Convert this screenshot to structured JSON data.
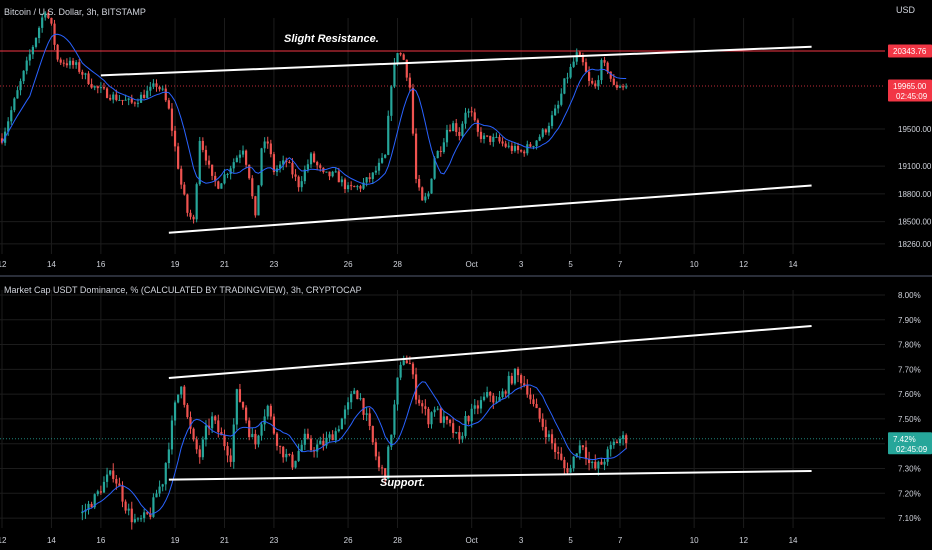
{
  "colors": {
    "background": "#000000",
    "up": "#26a69a",
    "down": "#ef5350",
    "ma": "#2962ff",
    "trendline": "#ffffff",
    "hline": "#f23645",
    "axis_text": "#d1d4dc",
    "grid": "#1c1c1c",
    "separator": "#2a2e39"
  },
  "x_axis": {
    "ticks": [
      {
        "label": "12",
        "idx": 0
      },
      {
        "label": "14",
        "idx": 16
      },
      {
        "label": "16",
        "idx": 32
      },
      {
        "label": "19",
        "idx": 56
      },
      {
        "label": "21",
        "idx": 72
      },
      {
        "label": "23",
        "idx": 88
      },
      {
        "label": "26",
        "idx": 112
      },
      {
        "label": "28",
        "idx": 128
      },
      {
        "label": "Oct",
        "idx": 152
      },
      {
        "label": "3",
        "idx": 168
      },
      {
        "label": "5",
        "idx": 184
      },
      {
        "label": "7",
        "idx": 200
      },
      {
        "label": "10",
        "idx": 224
      },
      {
        "label": "12",
        "idx": 240
      },
      {
        "label": "14",
        "idx": 256
      }
    ]
  },
  "chart_data": [
    {
      "type": "candlestick",
      "title": "Bitcoin / U.S. Dollar, 3h, BITSTAMP",
      "currency_label": "USD",
      "ylim": [
        18150,
        20700
      ],
      "y_ticks": [
        "18260.00",
        "18500.00",
        "18800.00",
        "19100.00",
        "19500.00"
      ],
      "y_tick_values": [
        18260,
        18500,
        18800,
        19100,
        19500
      ],
      "price_labels": [
        {
          "value": 20343.76,
          "text": "20343.76",
          "style": "hline"
        },
        {
          "value": 19965.0,
          "text": "19965.00",
          "sub": "02:45:09",
          "style": "last"
        }
      ],
      "horizontal_line": 20343.76,
      "last_price_line": 19965,
      "trendlines": [
        {
          "from": [
            32,
            20080
          ],
          "to": [
            262,
            20390
          ],
          "label": "Slight Resistance."
        },
        {
          "from": [
            54,
            18380
          ],
          "to": [
            262,
            18890
          ],
          "label": ""
        }
      ],
      "key_points": [
        [
          0,
          19400
        ],
        [
          8,
          20200
        ],
        [
          14,
          20800
        ],
        [
          16,
          20600
        ],
        [
          18,
          20250
        ],
        [
          24,
          20180
        ],
        [
          30,
          19950
        ],
        [
          36,
          19850
        ],
        [
          42,
          19780
        ],
        [
          48,
          19920
        ],
        [
          50,
          19980
        ],
        [
          52,
          19900
        ],
        [
          54,
          19700
        ],
        [
          56,
          19300
        ],
        [
          58,
          18900
        ],
        [
          60,
          18600
        ],
        [
          62,
          18500
        ],
        [
          64,
          19400
        ],
        [
          66,
          19200
        ],
        [
          68,
          18950
        ],
        [
          70,
          18900
        ],
        [
          74,
          19100
        ],
        [
          78,
          19300
        ],
        [
          80,
          19000
        ],
        [
          82,
          18520
        ],
        [
          84,
          19300
        ],
        [
          86,
          19350
        ],
        [
          88,
          19050
        ],
        [
          92,
          19150
        ],
        [
          96,
          18900
        ],
        [
          100,
          19200
        ],
        [
          104,
          19000
        ],
        [
          108,
          19000
        ],
        [
          112,
          18850
        ],
        [
          116,
          18880
        ],
        [
          120,
          19000
        ],
        [
          124,
          19200
        ],
        [
          126,
          20000
        ],
        [
          128,
          20350
        ],
        [
          130,
          20250
        ],
        [
          132,
          19950
        ],
        [
          134,
          18950
        ],
        [
          136,
          18700
        ],
        [
          138,
          18800
        ],
        [
          140,
          19200
        ],
        [
          142,
          19300
        ],
        [
          144,
          19500
        ],
        [
          146,
          19550
        ],
        [
          148,
          19450
        ],
        [
          150,
          19700
        ],
        [
          152,
          19650
        ],
        [
          154,
          19450
        ],
        [
          156,
          19400
        ],
        [
          160,
          19380
        ],
        [
          164,
          19300
        ],
        [
          168,
          19250
        ],
        [
          172,
          19350
        ],
        [
          176,
          19500
        ],
        [
          180,
          19750
        ],
        [
          182,
          20000
        ],
        [
          184,
          20150
        ],
        [
          186,
          20300
        ],
        [
          188,
          20200
        ],
        [
          190,
          20000
        ],
        [
          192,
          19950
        ],
        [
          194,
          20200
        ],
        [
          196,
          20150
        ],
        [
          198,
          19950
        ],
        [
          200,
          19980
        ],
        [
          202,
          19960
        ]
      ]
    },
    {
      "type": "candlestick",
      "title": "Market Cap USDT Dominance, % (CALCULATED BY TRADINGVIEW), 3h, CRYPTOCAP",
      "ylim": [
        7.06,
        8.02
      ],
      "y_ticks": [
        "7.10%",
        "7.20%",
        "7.30%",
        "7.40%",
        "7.50%",
        "7.60%",
        "7.70%",
        "7.80%",
        "7.90%",
        "8.00%"
      ],
      "y_tick_values": [
        7.1,
        7.2,
        7.3,
        7.4,
        7.5,
        7.6,
        7.7,
        7.8,
        7.9,
        8.0
      ],
      "price_labels": [
        {
          "value": 7.42,
          "text": "7.42%",
          "sub": "02:45:09",
          "style": "last_up"
        }
      ],
      "last_price_line": 7.42,
      "trendlines": [
        {
          "from": [
            54,
            7.665
          ],
          "to": [
            262,
            7.875
          ],
          "label": ""
        },
        {
          "from": [
            54,
            7.255
          ],
          "to": [
            262,
            7.29
          ],
          "label": "Support."
        }
      ],
      "key_points": [
        [
          26,
          7.12
        ],
        [
          30,
          7.18
        ],
        [
          32,
          7.22
        ],
        [
          34,
          7.26
        ],
        [
          36,
          7.28
        ],
        [
          38,
          7.22
        ],
        [
          40,
          7.15
        ],
        [
          42,
          7.1
        ],
        [
          44,
          7.08
        ],
        [
          46,
          7.1
        ],
        [
          48,
          7.12
        ],
        [
          50,
          7.2
        ],
        [
          52,
          7.25
        ],
        [
          54,
          7.4
        ],
        [
          56,
          7.55
        ],
        [
          58,
          7.65
        ],
        [
          60,
          7.5
        ],
        [
          62,
          7.4
        ],
        [
          64,
          7.35
        ],
        [
          66,
          7.45
        ],
        [
          68,
          7.5
        ],
        [
          70,
          7.45
        ],
        [
          72,
          7.4
        ],
        [
          74,
          7.35
        ],
        [
          76,
          7.6
        ],
        [
          78,
          7.55
        ],
        [
          80,
          7.45
        ],
        [
          82,
          7.4
        ],
        [
          84,
          7.5
        ],
        [
          86,
          7.55
        ],
        [
          88,
          7.45
        ],
        [
          90,
          7.38
        ],
        [
          94,
          7.32
        ],
        [
          98,
          7.42
        ],
        [
          100,
          7.38
        ],
        [
          104,
          7.4
        ],
        [
          108,
          7.45
        ],
        [
          110,
          7.5
        ],
        [
          112,
          7.55
        ],
        [
          114,
          7.62
        ],
        [
          116,
          7.58
        ],
        [
          118,
          7.5
        ],
        [
          120,
          7.4
        ],
        [
          122,
          7.3
        ],
        [
          124,
          7.28
        ],
        [
          126,
          7.45
        ],
        [
          128,
          7.65
        ],
        [
          130,
          7.75
        ],
        [
          132,
          7.72
        ],
        [
          134,
          7.6
        ],
        [
          136,
          7.55
        ],
        [
          138,
          7.5
        ],
        [
          140,
          7.55
        ],
        [
          142,
          7.5
        ],
        [
          144,
          7.48
        ],
        [
          146,
          7.45
        ],
        [
          148,
          7.4
        ],
        [
          150,
          7.5
        ],
        [
          152,
          7.52
        ],
        [
          154,
          7.55
        ],
        [
          156,
          7.58
        ],
        [
          158,
          7.6
        ],
        [
          160,
          7.56
        ],
        [
          162,
          7.6
        ],
        [
          164,
          7.65
        ],
        [
          166,
          7.68
        ],
        [
          168,
          7.66
        ],
        [
          170,
          7.62
        ],
        [
          172,
          7.55
        ],
        [
          174,
          7.5
        ],
        [
          176,
          7.45
        ],
        [
          178,
          7.4
        ],
        [
          180,
          7.35
        ],
        [
          182,
          7.3
        ],
        [
          184,
          7.3
        ],
        [
          186,
          7.38
        ],
        [
          188,
          7.4
        ],
        [
          190,
          7.32
        ],
        [
          192,
          7.3
        ],
        [
          194,
          7.32
        ],
        [
          196,
          7.36
        ],
        [
          198,
          7.4
        ],
        [
          200,
          7.42
        ],
        [
          202,
          7.42
        ]
      ]
    }
  ]
}
